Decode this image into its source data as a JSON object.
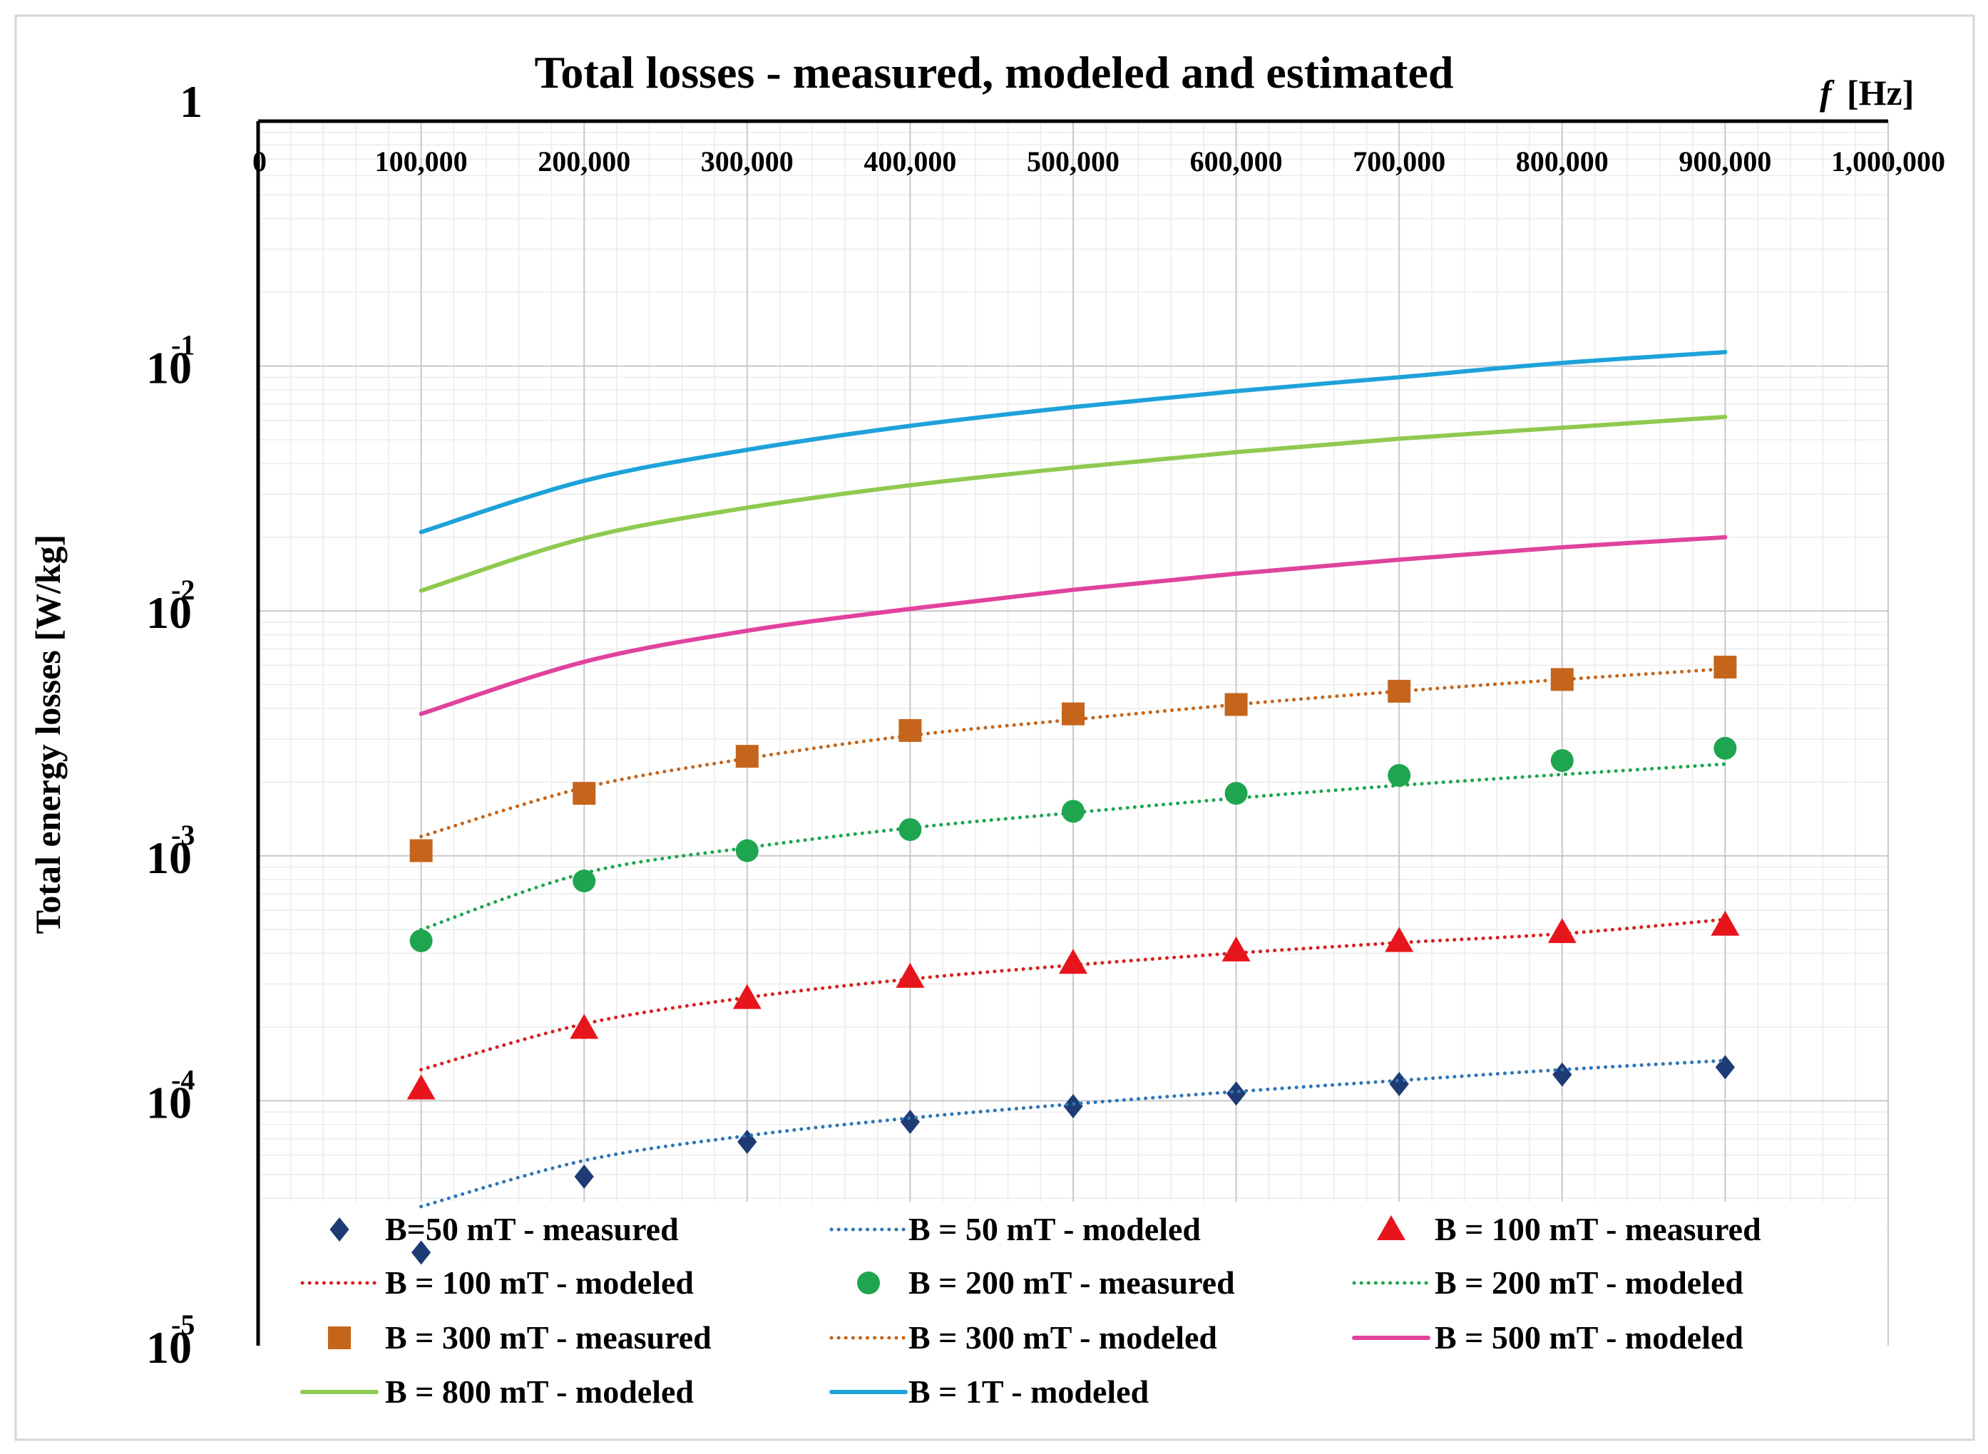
{
  "chart_data": {
    "type": "line",
    "title": "Total losses - measured, modeled and estimated",
    "xlabel_italic": "f",
    "xlabel_unit": "[Hz]",
    "ylabel": "Total energy losses [W/kg]",
    "xlim": [
      0,
      1000000
    ],
    "ylim": [
      1e-05,
      1
    ],
    "yscale": "log",
    "grid": true,
    "x_tick_labels": [
      "0",
      "100,000",
      "200,000",
      "300,000",
      "400,000",
      "500,000",
      "600,000",
      "700,000",
      "800,000",
      "900,000",
      "1,000,000"
    ],
    "y_ticks": [
      {
        "base": "1",
        "exp": ""
      },
      {
        "base": "10",
        "exp": "-1"
      },
      {
        "base": "10",
        "exp": "-2"
      },
      {
        "base": "10",
        "exp": "-3"
      },
      {
        "base": "10",
        "exp": "-4"
      },
      {
        "base": "10",
        "exp": "-5"
      }
    ],
    "x": [
      100000,
      200000,
      300000,
      400000,
      500000,
      600000,
      700000,
      800000,
      900000
    ],
    "series": [
      {
        "name": "B=50 mT - measured",
        "kind": "marker",
        "marker": "diamond",
        "color": "#1f3b73",
        "values": [
          2.4e-05,
          4.9e-05,
          6.8e-05,
          8.2e-05,
          9.5e-05,
          0.000107,
          0.000117,
          0.000128,
          0.000137
        ]
      },
      {
        "name": "B = 50 mT - modeled",
        "kind": "line",
        "dash": "dot",
        "color": "#2e75b6",
        "values": [
          3.7e-05,
          5.7e-05,
          7.2e-05,
          8.5e-05,
          9.7e-05,
          0.000109,
          0.000121,
          0.000134,
          0.000146
        ]
      },
      {
        "name": "B = 100 mT - measured",
        "kind": "marker",
        "marker": "triangle",
        "color": "#e8141c",
        "values": [
          0.000112,
          0.000198,
          0.000262,
          0.00032,
          0.000365,
          0.00041,
          0.000448,
          0.000487,
          0.000522
        ]
      },
      {
        "name": "B = 100 mT - modeled",
        "kind": "line",
        "dash": "dot",
        "color": "#d62020",
        "values": [
          0.000134,
          0.000206,
          0.000264,
          0.000314,
          0.000358,
          0.000401,
          0.000442,
          0.000481,
          0.00055
        ]
      },
      {
        "name": "B = 200 mT - measured",
        "kind": "marker",
        "marker": "circle",
        "color": "#1fa550",
        "values": [
          0.00045,
          0.00079,
          0.00105,
          0.00128,
          0.00152,
          0.0018,
          0.00213,
          0.00245,
          0.00275
        ]
      },
      {
        "name": "B = 200 mT - modeled",
        "kind": "line",
        "dash": "dot",
        "color": "#1fa550",
        "values": [
          0.0005,
          0.00085,
          0.00108,
          0.0013,
          0.0015,
          0.00172,
          0.00194,
          0.00215,
          0.00237
        ]
      },
      {
        "name": "B = 300 mT - measured",
        "kind": "marker",
        "marker": "square",
        "color": "#c5651c",
        "values": [
          0.00105,
          0.0018,
          0.00255,
          0.00325,
          0.0038,
          0.00415,
          0.0047,
          0.00525,
          0.0059
        ]
      },
      {
        "name": "B = 300 mT - modeled",
        "kind": "line",
        "dash": "dot",
        "color": "#c5651c",
        "values": [
          0.0012,
          0.0019,
          0.0025,
          0.0031,
          0.0036,
          0.00415,
          0.0047,
          0.00525,
          0.0058
        ]
      },
      {
        "name": "B = 500 mT - modeled",
        "kind": "line",
        "dash": "solid",
        "color": "#e0439d",
        "values": [
          0.0038,
          0.0062,
          0.0083,
          0.0102,
          0.0122,
          0.0142,
          0.0162,
          0.0182,
          0.02
        ]
      },
      {
        "name": "B = 800 mT - modeled",
        "kind": "line",
        "dash": "solid",
        "color": "#8fca50",
        "values": [
          0.0121,
          0.0198,
          0.0264,
          0.0326,
          0.0385,
          0.0445,
          0.0505,
          0.056,
          0.062
        ]
      },
      {
        "name": "B = 1T - modeled",
        "kind": "line",
        "dash": "solid",
        "color": "#1ea2d9",
        "values": [
          0.021,
          0.034,
          0.0455,
          0.057,
          0.068,
          0.079,
          0.09,
          0.103,
          0.114
        ]
      }
    ],
    "legend_position": "bottom-inside"
  }
}
